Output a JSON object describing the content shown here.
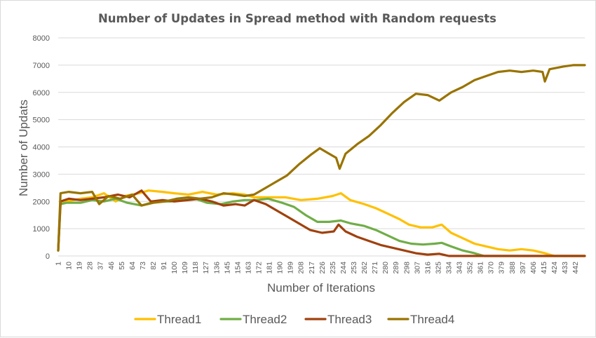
{
  "chart_data": {
    "type": "line",
    "title": "Number of Updates in Spread method with Random requests",
    "xlabel": "Number of Iterations",
    "ylabel": "Number of Updats",
    "ylim": [
      0,
      8000
    ],
    "yticks": [
      0,
      1000,
      2000,
      3000,
      4000,
      5000,
      6000,
      7000,
      8000
    ],
    "xlim": [
      1,
      450
    ],
    "xticks": [
      1,
      10,
      19,
      28,
      37,
      46,
      55,
      64,
      73,
      82,
      91,
      100,
      109,
      118,
      127,
      136,
      145,
      154,
      163,
      172,
      181,
      190,
      199,
      208,
      217,
      226,
      235,
      244,
      253,
      262,
      271,
      280,
      289,
      298,
      307,
      316,
      325,
      334,
      343,
      352,
      361,
      370,
      379,
      388,
      397,
      406,
      415,
      424,
      433,
      442
    ],
    "grid": true,
    "legend_position": "bottom",
    "series": [
      {
        "name": "Thread1",
        "color": "#FFC000",
        "points": [
          [
            1,
            200
          ],
          [
            3,
            1900
          ],
          [
            8,
            2000
          ],
          [
            20,
            2100
          ],
          [
            30,
            2150
          ],
          [
            40,
            2300
          ],
          [
            50,
            2000
          ],
          [
            58,
            2200
          ],
          [
            70,
            2300
          ],
          [
            78,
            2400
          ],
          [
            90,
            2350
          ],
          [
            100,
            2300
          ],
          [
            112,
            2250
          ],
          [
            124,
            2350
          ],
          [
            136,
            2250
          ],
          [
            150,
            2300
          ],
          [
            160,
            2250
          ],
          [
            168,
            2150
          ],
          [
            178,
            2150
          ],
          [
            195,
            2150
          ],
          [
            208,
            2050
          ],
          [
            222,
            2100
          ],
          [
            235,
            2200
          ],
          [
            242,
            2300
          ],
          [
            250,
            2050
          ],
          [
            262,
            1900
          ],
          [
            272,
            1750
          ],
          [
            282,
            1550
          ],
          [
            292,
            1350
          ],
          [
            300,
            1150
          ],
          [
            310,
            1050
          ],
          [
            320,
            1050
          ],
          [
            328,
            1150
          ],
          [
            336,
            850
          ],
          [
            346,
            650
          ],
          [
            356,
            450
          ],
          [
            366,
            350
          ],
          [
            376,
            250
          ],
          [
            386,
            200
          ],
          [
            396,
            250
          ],
          [
            406,
            200
          ],
          [
            416,
            100
          ],
          [
            424,
            0
          ],
          [
            450,
            0
          ]
        ]
      },
      {
        "name": "Thread2",
        "color": "#70AD47",
        "points": [
          [
            1,
            200
          ],
          [
            3,
            1900
          ],
          [
            8,
            1950
          ],
          [
            20,
            1950
          ],
          [
            30,
            2050
          ],
          [
            40,
            2000
          ],
          [
            50,
            2100
          ],
          [
            60,
            1950
          ],
          [
            72,
            1850
          ],
          [
            84,
            2000
          ],
          [
            96,
            2000
          ],
          [
            108,
            2050
          ],
          [
            118,
            2100
          ],
          [
            128,
            1950
          ],
          [
            140,
            1900
          ],
          [
            150,
            2000
          ],
          [
            160,
            2050
          ],
          [
            170,
            2050
          ],
          [
            180,
            2100
          ],
          [
            192,
            1950
          ],
          [
            202,
            1800
          ],
          [
            212,
            1500
          ],
          [
            222,
            1250
          ],
          [
            232,
            1250
          ],
          [
            242,
            1300
          ],
          [
            250,
            1200
          ],
          [
            262,
            1100
          ],
          [
            272,
            950
          ],
          [
            282,
            750
          ],
          [
            292,
            550
          ],
          [
            302,
            450
          ],
          [
            312,
            420
          ],
          [
            322,
            450
          ],
          [
            328,
            480
          ],
          [
            336,
            350
          ],
          [
            346,
            200
          ],
          [
            356,
            100
          ],
          [
            364,
            0
          ],
          [
            450,
            0
          ]
        ]
      },
      {
        "name": "Thread3",
        "color": "#A0410D",
        "points": [
          [
            1,
            200
          ],
          [
            3,
            2000
          ],
          [
            10,
            2100
          ],
          [
            20,
            2050
          ],
          [
            30,
            2100
          ],
          [
            40,
            2150
          ],
          [
            52,
            2250
          ],
          [
            62,
            2150
          ],
          [
            72,
            2400
          ],
          [
            80,
            2000
          ],
          [
            90,
            2050
          ],
          [
            100,
            2000
          ],
          [
            112,
            2050
          ],
          [
            122,
            2100
          ],
          [
            132,
            2000
          ],
          [
            142,
            1850
          ],
          [
            152,
            1900
          ],
          [
            160,
            1850
          ],
          [
            168,
            2050
          ],
          [
            178,
            1900
          ],
          [
            186,
            1700
          ],
          [
            196,
            1450
          ],
          [
            206,
            1200
          ],
          [
            216,
            950
          ],
          [
            226,
            850
          ],
          [
            236,
            900
          ],
          [
            240,
            1150
          ],
          [
            246,
            900
          ],
          [
            256,
            700
          ],
          [
            266,
            550
          ],
          [
            276,
            400
          ],
          [
            286,
            300
          ],
          [
            296,
            200
          ],
          [
            306,
            100
          ],
          [
            316,
            50
          ],
          [
            326,
            80
          ],
          [
            334,
            0
          ],
          [
            450,
            0
          ]
        ]
      },
      {
        "name": "Thread4",
        "color": "#997300",
        "points": [
          [
            1,
            200
          ],
          [
            3,
            2300
          ],
          [
            10,
            2350
          ],
          [
            20,
            2300
          ],
          [
            30,
            2350
          ],
          [
            36,
            1900
          ],
          [
            44,
            2200
          ],
          [
            54,
            2100
          ],
          [
            64,
            2250
          ],
          [
            72,
            1850
          ],
          [
            82,
            1950
          ],
          [
            92,
            2000
          ],
          [
            102,
            2100
          ],
          [
            112,
            2150
          ],
          [
            122,
            2100
          ],
          [
            132,
            2150
          ],
          [
            142,
            2300
          ],
          [
            152,
            2250
          ],
          [
            160,
            2200
          ],
          [
            168,
            2250
          ],
          [
            176,
            2450
          ],
          [
            186,
            2700
          ],
          [
            196,
            2950
          ],
          [
            206,
            3350
          ],
          [
            216,
            3700
          ],
          [
            224,
            3950
          ],
          [
            232,
            3750
          ],
          [
            238,
            3600
          ],
          [
            241,
            3200
          ],
          [
            246,
            3750
          ],
          [
            256,
            4100
          ],
          [
            266,
            4400
          ],
          [
            276,
            4800
          ],
          [
            286,
            5250
          ],
          [
            296,
            5650
          ],
          [
            306,
            5950
          ],
          [
            316,
            5900
          ],
          [
            326,
            5700
          ],
          [
            336,
            6000
          ],
          [
            346,
            6200
          ],
          [
            356,
            6450
          ],
          [
            366,
            6600
          ],
          [
            376,
            6750
          ],
          [
            386,
            6800
          ],
          [
            396,
            6750
          ],
          [
            406,
            6800
          ],
          [
            414,
            6750
          ],
          [
            416,
            6400
          ],
          [
            420,
            6850
          ],
          [
            432,
            6950
          ],
          [
            440,
            7000
          ],
          [
            450,
            7000
          ]
        ]
      }
    ]
  }
}
